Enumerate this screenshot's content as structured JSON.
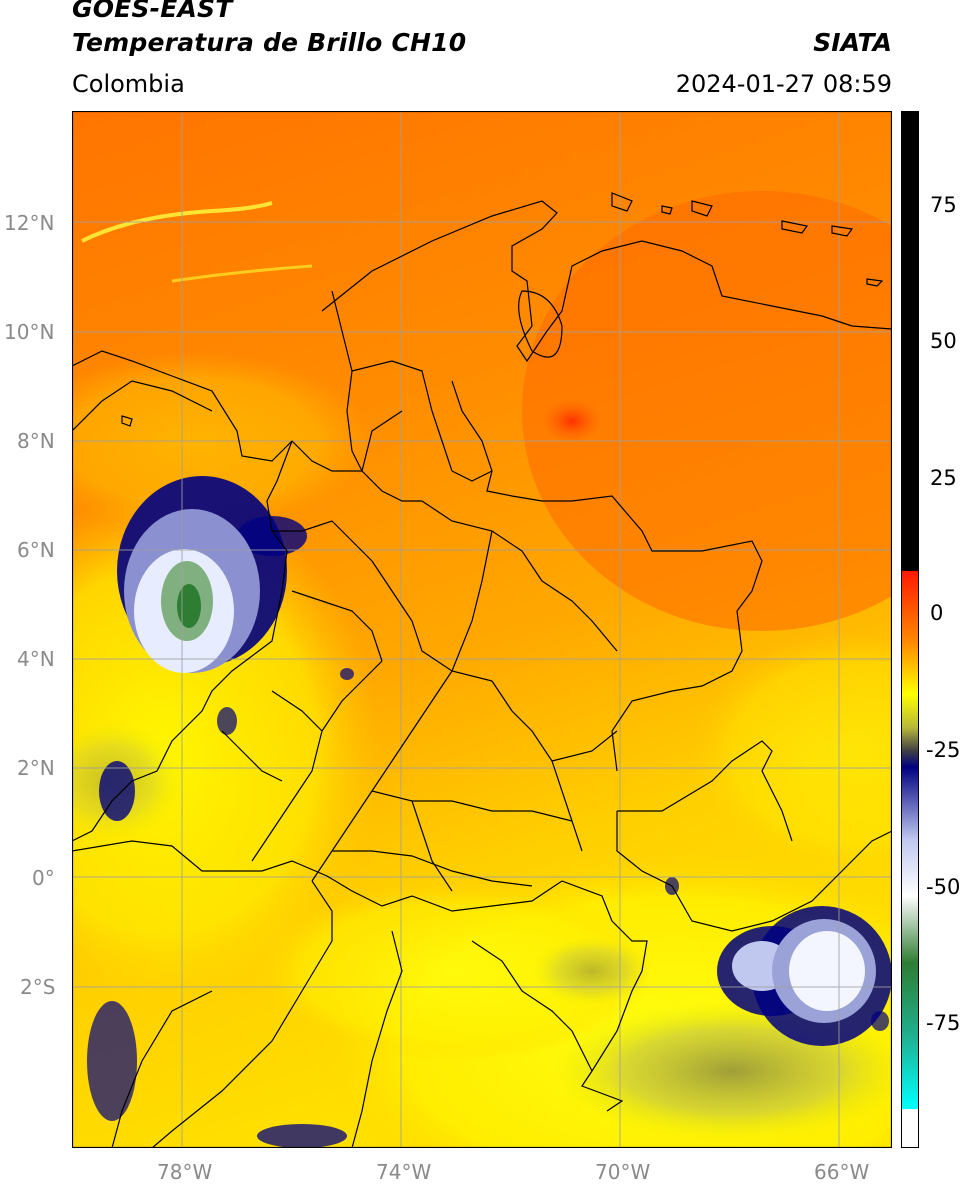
{
  "header": {
    "satellite": "GOES-EAST",
    "product": "Temperatura de Brillo CH10",
    "region": "Colombia",
    "brand": "SIATA",
    "datetime": "2024-01-27 08:59"
  },
  "map": {
    "lat_labels": [
      "12°N",
      "10°N",
      "8°N",
      "6°N",
      "4°N",
      "2°N",
      "0°",
      "2°S"
    ],
    "lon_labels": [
      "78°W",
      "74°W",
      "70°W",
      "66°W"
    ],
    "gridline_color": "#a0a0a0",
    "border_color": "#000000"
  },
  "colorbar": {
    "ticks": [
      "75",
      "50",
      "25",
      "0",
      "-25",
      "-50",
      "-75"
    ],
    "stops": [
      {
        "value": 90,
        "color": "#000000"
      },
      {
        "value": 8,
        "color": "#000000"
      },
      {
        "value": 7.9,
        "color": "#ff1a00"
      },
      {
        "value": -5,
        "color": "#ff8c00"
      },
      {
        "value": -14,
        "color": "#ffff00"
      },
      {
        "value": -20,
        "color": "#b8b83a"
      },
      {
        "value": -24,
        "color": "#444444"
      },
      {
        "value": -27,
        "color": "#000080"
      },
      {
        "value": -40,
        "color": "#c0c8f0"
      },
      {
        "value": -50,
        "color": "#ffffff"
      },
      {
        "value": -62,
        "color": "#2e7d32"
      },
      {
        "value": -75,
        "color": "#20b090"
      },
      {
        "value": -88,
        "color": "#00ffff"
      },
      {
        "value": -88.1,
        "color": "#ffffff"
      },
      {
        "value": -95,
        "color": "#ffffff"
      }
    ],
    "range": [
      -95,
      90
    ]
  }
}
